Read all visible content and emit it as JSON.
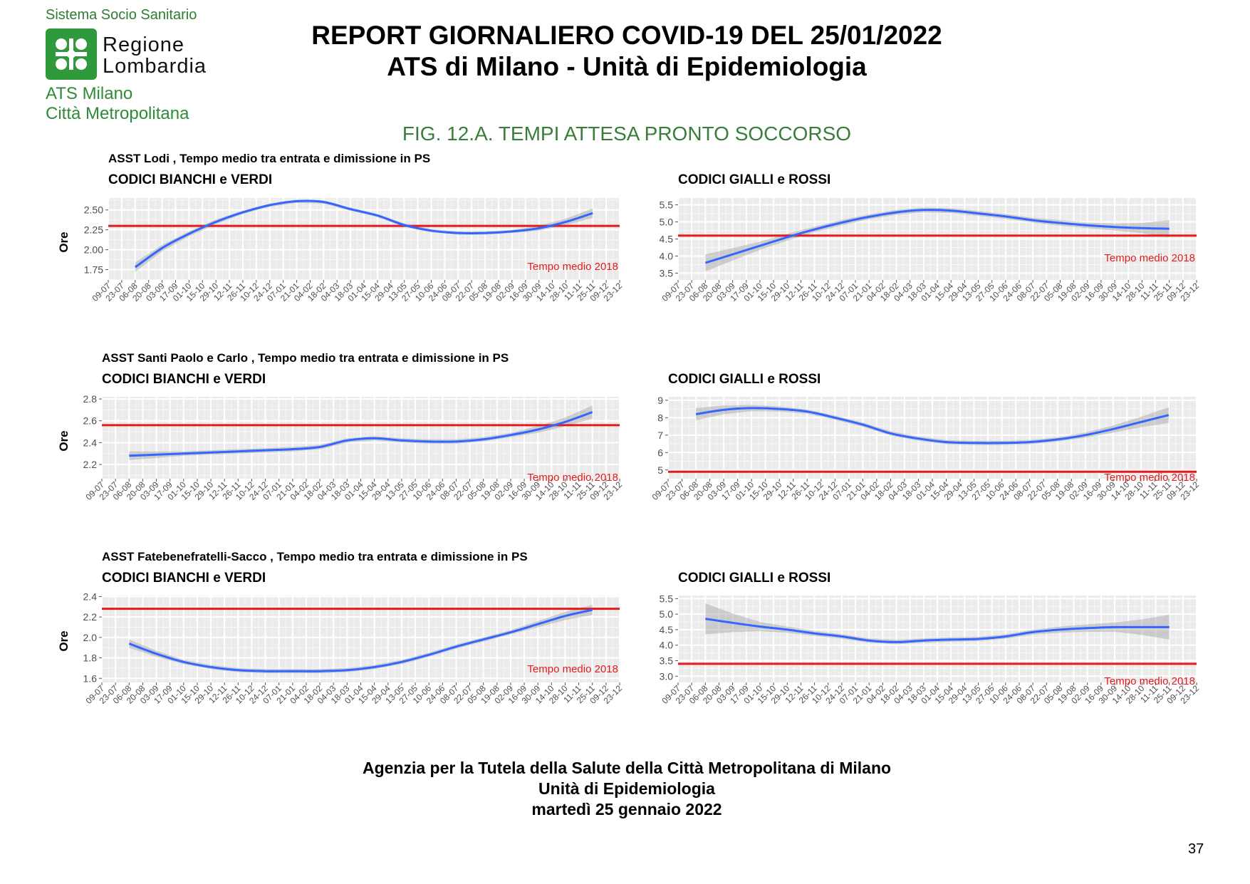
{
  "logo": {
    "top_text": "Sistema Socio Sanitario",
    "name_line1": "Regione",
    "name_line2": "Lombardia",
    "ats_line1": "ATS Milano",
    "ats_line2": "Città Metropolitana",
    "color": "#2e9a3b"
  },
  "header": {
    "title_line1": "REPORT GIORNALIERO COVID-19 DEL 25/01/2022",
    "title_line2": "ATS di Milano - Unità di Epidemiologia"
  },
  "figure_title": "FIG. 12.A. TEMPI ATTESA PRONTO SOCCORSO",
  "colors": {
    "line": "#3366ff",
    "reference": "#e41a1c",
    "panel_bg": "#ebebeb",
    "ribbon": "#999999",
    "figure_title": "#3a7d3a"
  },
  "x_tick_labels": [
    "09-07",
    "23-07",
    "06-08",
    "20-08",
    "03-09",
    "17-09",
    "01-10",
    "15-10",
    "29-10",
    "12-11",
    "26-11",
    "10-12",
    "24-12",
    "07-01",
    "21-01",
    "04-02",
    "18-02",
    "04-03",
    "18-03",
    "01-04",
    "15-04",
    "29-04",
    "13-05",
    "27-05",
    "10-06",
    "24-06",
    "08-07",
    "22-07",
    "05-08",
    "19-08",
    "02-09",
    "16-09",
    "30-09",
    "14-10",
    "28-10",
    "11-11",
    "25-11",
    "09-12",
    "23-12"
  ],
  "chart_data": [
    {
      "type": "line",
      "section_title": "ASST Lodi , Tempo medio tra entrata e dimissione in PS",
      "title": "CODICI BIANCHI e VERDI",
      "ylabel": "Ore",
      "ylim": [
        1.62,
        2.65
      ],
      "yticks": [
        1.75,
        2.0,
        2.25,
        2.5
      ],
      "ytick_labels": [
        "1.75",
        "2.00",
        "2.25",
        "2.50"
      ],
      "reference": {
        "value": 2.3,
        "label": "Tempo medio 2018"
      },
      "x": [
        2,
        4,
        6,
        8,
        10,
        12,
        14,
        16,
        18,
        20,
        22,
        24,
        26,
        28,
        30,
        32,
        34,
        36
      ],
      "y": [
        1.78,
        2.02,
        2.2,
        2.35,
        2.47,
        2.56,
        2.61,
        2.6,
        2.51,
        2.43,
        2.31,
        2.24,
        2.21,
        2.21,
        2.23,
        2.27,
        2.35,
        2.46
      ],
      "ribbon_halfwidth": [
        0.06,
        0.04,
        0.03,
        0.03,
        0.02,
        0.02,
        0.02,
        0.02,
        0.02,
        0.02,
        0.02,
        0.02,
        0.02,
        0.02,
        0.02,
        0.03,
        0.04,
        0.06
      ],
      "grid": true
    },
    {
      "type": "line",
      "title": "CODICI GIALLI e ROSSI",
      "ylim": [
        3.3,
        5.7
      ],
      "yticks": [
        3.5,
        4.0,
        4.5,
        5.0,
        5.5
      ],
      "ytick_labels": [
        "3.5",
        "4.0",
        "4.5",
        "5.0",
        "5.5"
      ],
      "reference": {
        "value": 4.6,
        "label": "Tempo medio 2018"
      },
      "x": [
        2,
        4,
        6,
        8,
        10,
        12,
        14,
        16,
        18,
        20,
        22,
        24,
        26,
        28,
        30,
        32,
        34,
        36
      ],
      "y": [
        3.8,
        4.05,
        4.3,
        4.55,
        4.78,
        4.98,
        5.15,
        5.28,
        5.35,
        5.33,
        5.25,
        5.16,
        5.05,
        4.97,
        4.9,
        4.85,
        4.82,
        4.8
      ],
      "ribbon_halfwidth": [
        0.25,
        0.18,
        0.12,
        0.1,
        0.08,
        0.08,
        0.07,
        0.07,
        0.07,
        0.07,
        0.07,
        0.07,
        0.07,
        0.08,
        0.08,
        0.1,
        0.15,
        0.25
      ],
      "grid": true
    },
    {
      "type": "line",
      "section_title": "ASST Santi Paolo e Carlo , Tempo medio tra entrata e dimissione in PS",
      "title": "CODICI BIANCHI e VERDI",
      "ylabel": "Ore",
      "ylim": [
        2.07,
        2.82
      ],
      "yticks": [
        2.2,
        2.4,
        2.6,
        2.8
      ],
      "ytick_labels": [
        "2.2",
        "2.4",
        "2.6",
        "2.8"
      ],
      "reference": {
        "value": 2.56,
        "label": "Tempo medio 2018"
      },
      "x": [
        2,
        4,
        6,
        8,
        10,
        12,
        14,
        16,
        18,
        20,
        22,
        24,
        26,
        28,
        30,
        32,
        34,
        36
      ],
      "y": [
        2.28,
        2.29,
        2.3,
        2.31,
        2.32,
        2.33,
        2.34,
        2.36,
        2.42,
        2.44,
        2.42,
        2.41,
        2.41,
        2.43,
        2.47,
        2.52,
        2.59,
        2.68
      ],
      "ribbon_halfwidth": [
        0.04,
        0.03,
        0.02,
        0.02,
        0.02,
        0.02,
        0.02,
        0.02,
        0.02,
        0.02,
        0.02,
        0.02,
        0.02,
        0.02,
        0.02,
        0.03,
        0.04,
        0.06
      ],
      "grid": true
    },
    {
      "type": "line",
      "title": "CODICI GIALLI e ROSSI",
      "ylim": [
        4.5,
        9.2
      ],
      "yticks": [
        5,
        6,
        7,
        8,
        9
      ],
      "ytick_labels": [
        "5",
        "6",
        "7",
        "8",
        "9"
      ],
      "reference": {
        "value": 4.9,
        "label": "Tempo medio 2018"
      },
      "x": [
        2,
        4,
        6,
        8,
        10,
        12,
        14,
        16,
        18,
        20,
        22,
        24,
        26,
        28,
        30,
        32,
        34,
        36
      ],
      "y": [
        8.2,
        8.45,
        8.55,
        8.5,
        8.35,
        8.0,
        7.6,
        7.1,
        6.8,
        6.6,
        6.55,
        6.55,
        6.6,
        6.75,
        7.0,
        7.35,
        7.75,
        8.15
      ],
      "ribbon_halfwidth": [
        0.35,
        0.25,
        0.18,
        0.15,
        0.12,
        0.12,
        0.12,
        0.12,
        0.12,
        0.12,
        0.12,
        0.12,
        0.12,
        0.12,
        0.15,
        0.2,
        0.3,
        0.45
      ],
      "grid": true
    },
    {
      "type": "line",
      "section_title": "ASST Fatebenefratelli-Sacco , Tempo medio tra entrata e dimissione in PS",
      "title": "CODICI BIANCHI e VERDI",
      "ylabel": "Ore",
      "ylim": [
        1.56,
        2.41
      ],
      "yticks": [
        1.6,
        1.8,
        2.0,
        2.2,
        2.4
      ],
      "ytick_labels": [
        "1.6",
        "1.8",
        "2.0",
        "2.2",
        "2.4"
      ],
      "reference": {
        "value": 2.28,
        "label": "Tempo medio 2018"
      },
      "x": [
        2,
        4,
        6,
        8,
        10,
        12,
        14,
        16,
        18,
        20,
        22,
        24,
        26,
        28,
        30,
        32,
        34,
        36
      ],
      "y": [
        1.94,
        1.84,
        1.76,
        1.71,
        1.68,
        1.67,
        1.67,
        1.67,
        1.68,
        1.71,
        1.76,
        1.83,
        1.91,
        1.98,
        2.05,
        2.13,
        2.21,
        2.27
      ],
      "ribbon_halfwidth": [
        0.04,
        0.03,
        0.02,
        0.02,
        0.02,
        0.02,
        0.02,
        0.02,
        0.02,
        0.02,
        0.02,
        0.02,
        0.02,
        0.02,
        0.02,
        0.03,
        0.04,
        0.05
      ],
      "grid": true
    },
    {
      "type": "line",
      "title": "CODICI GIALLI e ROSSI",
      "ylim": [
        2.8,
        5.6
      ],
      "yticks": [
        3.0,
        3.5,
        4.0,
        4.5,
        5.0,
        5.5
      ],
      "ytick_labels": [
        "3.0",
        "3.5",
        "4.0",
        "4.5",
        "5.0",
        "5.5"
      ],
      "reference": {
        "value": 3.4,
        "label": "Tempo medio 2018"
      },
      "x": [
        2,
        4,
        6,
        8,
        10,
        12,
        14,
        16,
        18,
        20,
        22,
        24,
        26,
        28,
        30,
        32,
        34,
        36
      ],
      "y": [
        4.85,
        4.72,
        4.6,
        4.5,
        4.38,
        4.28,
        4.15,
        4.1,
        4.15,
        4.18,
        4.2,
        4.28,
        4.42,
        4.5,
        4.55,
        4.58,
        4.58,
        4.58
      ],
      "ribbon_halfwidth": [
        0.5,
        0.3,
        0.15,
        0.1,
        0.08,
        0.07,
        0.07,
        0.07,
        0.07,
        0.07,
        0.07,
        0.07,
        0.08,
        0.1,
        0.12,
        0.15,
        0.25,
        0.4
      ],
      "grid": true
    }
  ],
  "footer": {
    "line1": "Agenzia per la Tutela della Salute della Città Metropolitana di Milano",
    "line2": "Unità di Epidemiologia",
    "line3": "martedì 25 gennaio 2022"
  },
  "page_number": "37"
}
